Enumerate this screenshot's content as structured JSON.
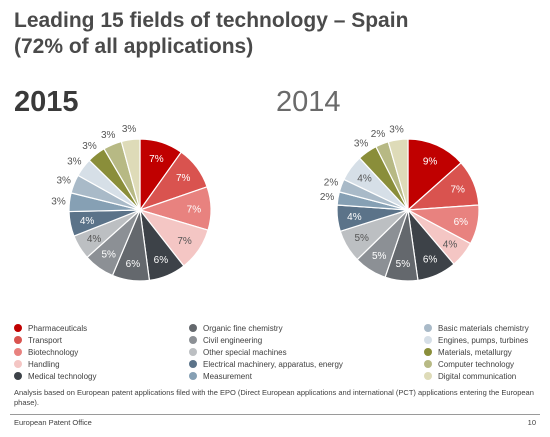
{
  "header": {
    "title_line1": "Leading 15 fields of technology – Spain",
    "title_line2": "(72% of all applications)"
  },
  "chart_data": [
    {
      "type": "pie",
      "year_label": "2015",
      "categories": [
        "Pharmaceuticals",
        "Transport",
        "Biotechnology",
        "Handling",
        "Medical technology",
        "Organic fine chemistry",
        "Civil engineering",
        "Other special machines",
        "Electrical machinery, apparatus, energy",
        "Measurement",
        "Basic materials chemistry",
        "Engines, pumps, turbines",
        "Materials, metallurgy",
        "Computer technology",
        "Digital communication"
      ],
      "values": [
        7,
        7,
        7,
        7,
        6,
        6,
        5,
        4,
        4,
        3,
        3,
        3,
        3,
        3,
        3
      ],
      "labels": [
        "7%",
        "7%",
        "7%",
        "7%",
        "6%",
        "6%",
        "5%",
        "4%",
        "4%",
        "3%",
        "3%",
        "3%",
        "3%",
        "3%",
        "3%"
      ]
    },
    {
      "type": "pie",
      "year_label": "2014",
      "categories": [
        "Pharmaceuticals",
        "Transport",
        "Biotechnology",
        "Handling",
        "Medical technology",
        "Organic fine chemistry",
        "Civil engineering",
        "Other special machines",
        "Electrical machinery, apparatus, energy",
        "Measurement",
        "Basic materials chemistry",
        "Engines, pumps, turbines",
        "Materials, metallurgy",
        "Computer technology",
        "Digital communication"
      ],
      "values": [
        9,
        7,
        6,
        4,
        6,
        5,
        5,
        5,
        4,
        2,
        2,
        4,
        3,
        2,
        3
      ],
      "labels": [
        "9%",
        "7%",
        "6%",
        "4%",
        "6%",
        "5%",
        "5%",
        "5%",
        "4%",
        "2%",
        "2%",
        "4%",
        "3%",
        "2%",
        "3%"
      ]
    }
  ],
  "legend": [
    {
      "label": "Pharmaceuticals",
      "color": "#c00000"
    },
    {
      "label": "Transport",
      "color": "#d9534f"
    },
    {
      "label": "Biotechnology",
      "color": "#e8827f"
    },
    {
      "label": "Handling",
      "color": "#f4c6c4"
    },
    {
      "label": "Medical technology",
      "color": "#3d4248"
    },
    {
      "label": "Organic fine chemistry",
      "color": "#64686d"
    },
    {
      "label": "Civil engineering",
      "color": "#8c9095"
    },
    {
      "label": "Other special machines",
      "color": "#bcbfc2"
    },
    {
      "label": "Electrical machinery, apparatus, energy",
      "color": "#5b7389"
    },
    {
      "label": "Measurement",
      "color": "#86a0b4"
    },
    {
      "label": "Basic materials chemistry",
      "color": "#a9bac8"
    },
    {
      "label": "Engines, pumps, turbines",
      "color": "#d6dfe7"
    },
    {
      "label": "Materials, metallurgy",
      "color": "#8a8e3a"
    },
    {
      "label": "Computer technology",
      "color": "#b7b984"
    },
    {
      "label": "Digital communication",
      "color": "#dedbb8"
    }
  ],
  "footnote": "Analysis based on European patent applications filed with the EPO (Direct European applications and international (PCT) applications entering the European phase).",
  "footer": {
    "organization": "European Patent Office",
    "page_number": "10"
  }
}
